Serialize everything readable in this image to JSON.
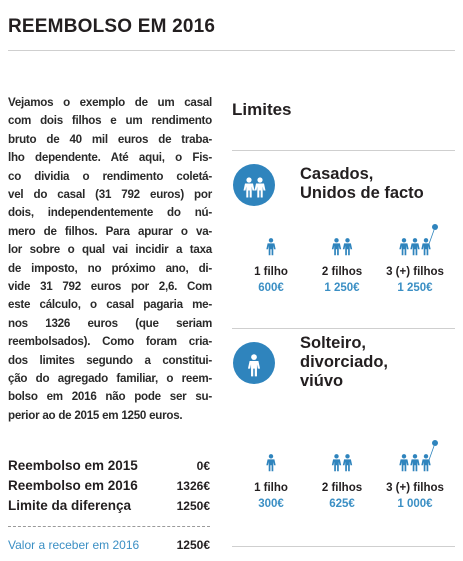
{
  "header": {
    "title": "REEMBOLSO EM 2016"
  },
  "text": {
    "lines": [
      "Vejamos o exemplo de um casal",
      "com dois filhos e um rendimento",
      "bruto de 40 mil euros de traba-",
      "lho dependente. Até aqui, o Fis-",
      "co dividia o rendimento coletá-",
      "vel do casal (31 792 euros) por",
      "dois, independentemente do nú-",
      "mero de filhos. Para apurar o va-",
      "lor sobre o qual vai incidir a taxa",
      "de imposto, no próximo ano, di-",
      "vide 31 792 euros por 2,6. Com",
      "este cálculo, o casal pagaria me-",
      "nos 1326 euros (que seriam",
      "reembolsados). Como foram cria-",
      "dos limites segundo a constitui-",
      "ção do agregado familiar, o reem-",
      "bolso em 2016 não pode ser su-",
      "perior ao de 2015 em 1250 euros."
    ]
  },
  "summary": {
    "rows": [
      [
        "Reembolso em 2015",
        "0€"
      ],
      [
        "Reembolso em 2016",
        "1326€"
      ],
      [
        "Limite da diferença",
        "1250€"
      ]
    ],
    "total": [
      "Valor a receber em 2016",
      "1250€"
    ]
  },
  "limits": {
    "title": "Limites",
    "sections": [
      {
        "heading": [
          "Casados,",
          "Unidos de facto"
        ],
        "icon": "couple",
        "groups": [
          {
            "label": "1 filho",
            "value": "600€"
          },
          {
            "label": "2 filhos",
            "value": "1 250€"
          },
          {
            "label": "3 (+) filhos",
            "value": "1 250€"
          }
        ]
      },
      {
        "heading": [
          "Solteiro,",
          "divorciado,",
          "viúvo"
        ],
        "icon": "single",
        "groups": [
          {
            "label": "1 filho",
            "value": "300€"
          },
          {
            "label": "2 filhos",
            "value": "625€"
          },
          {
            "label": "3 (+) filhos",
            "value": "1 000€"
          }
        ]
      }
    ]
  }
}
